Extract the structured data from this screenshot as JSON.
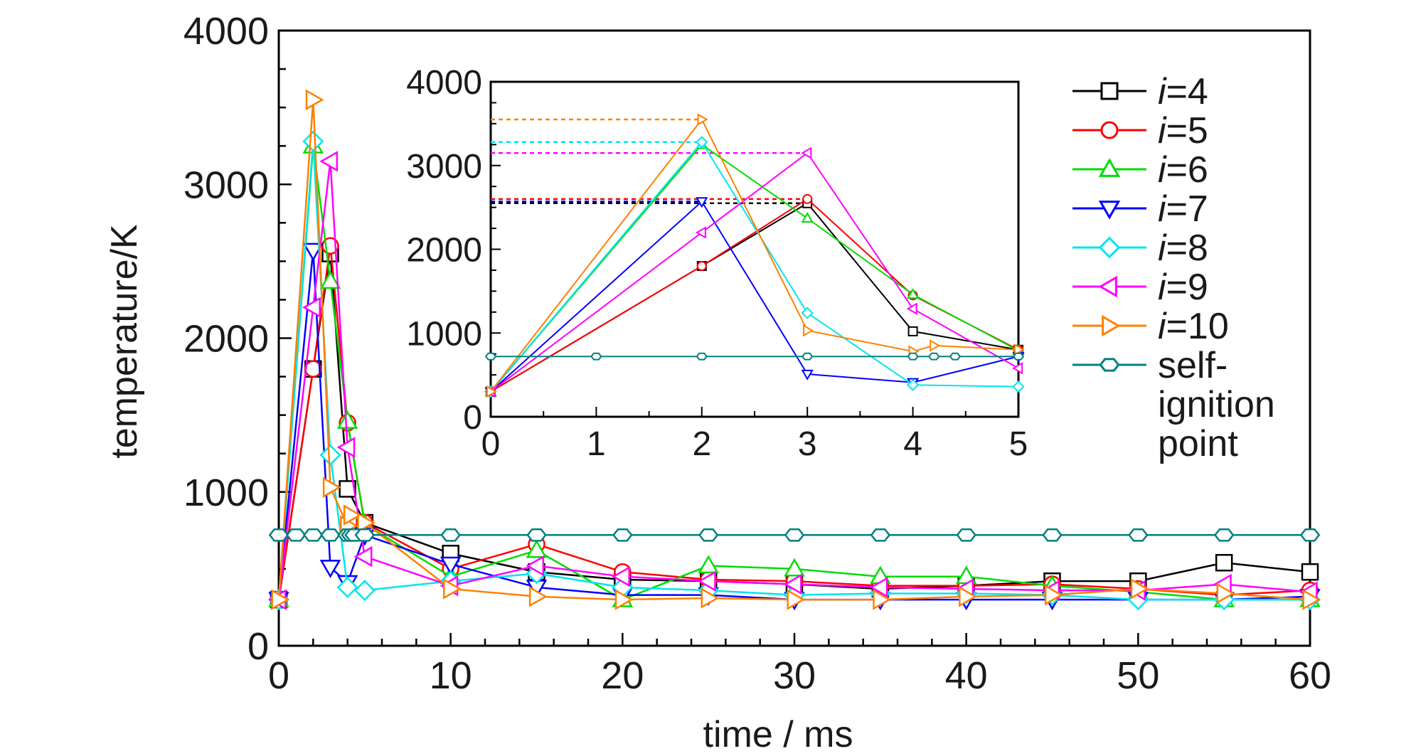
{
  "chart_data": {
    "type": "line",
    "xlabel": "time / ms",
    "ylabel": "temperature/K",
    "xlim": [
      0,
      60
    ],
    "ylim": [
      0,
      4000
    ],
    "xticks": [
      "0",
      "10",
      "20",
      "30",
      "40",
      "50",
      "60"
    ],
    "yticks": [
      "0",
      "1000",
      "2000",
      "3000",
      "4000"
    ],
    "grid": false,
    "legend_position": "right",
    "series": [
      {
        "name": "i=4",
        "label_prefix": "i",
        "label_suffix": "=4",
        "color": "#000000",
        "marker": "square",
        "points": [
          [
            0,
            300
          ],
          [
            2,
            1800
          ],
          [
            3,
            2550
          ],
          [
            4,
            1020
          ],
          [
            5,
            800
          ],
          [
            10,
            600
          ],
          [
            15,
            480
          ],
          [
            20,
            430
          ],
          [
            25,
            420
          ],
          [
            30,
            400
          ],
          [
            35,
            370
          ],
          [
            40,
            390
          ],
          [
            45,
            420
          ],
          [
            50,
            420
          ],
          [
            55,
            540
          ],
          [
            60,
            480
          ]
        ]
      },
      {
        "name": "i=5",
        "label_prefix": "i",
        "label_suffix": "=5",
        "color": "#ff0000",
        "marker": "circle",
        "points": [
          [
            0,
            300
          ],
          [
            2,
            1800
          ],
          [
            3,
            2600
          ],
          [
            4,
            1450
          ],
          [
            5,
            800
          ],
          [
            10,
            500
          ],
          [
            15,
            660
          ],
          [
            20,
            480
          ],
          [
            25,
            430
          ],
          [
            30,
            420
          ],
          [
            35,
            390
          ],
          [
            40,
            390
          ],
          [
            45,
            400
          ],
          [
            50,
            370
          ],
          [
            55,
            330
          ],
          [
            60,
            360
          ]
        ]
      },
      {
        "name": "i=6",
        "label_prefix": "i",
        "label_suffix": "=6",
        "color": "#00dd00",
        "marker": "triangle-up",
        "points": [
          [
            0,
            300
          ],
          [
            2,
            3250
          ],
          [
            3,
            2370
          ],
          [
            4,
            1460
          ],
          [
            5,
            790
          ],
          [
            10,
            450
          ],
          [
            15,
            620
          ],
          [
            20,
            300
          ],
          [
            25,
            520
          ],
          [
            30,
            500
          ],
          [
            35,
            450
          ],
          [
            40,
            450
          ],
          [
            45,
            390
          ],
          [
            50,
            350
          ],
          [
            55,
            300
          ],
          [
            60,
            300
          ]
        ]
      },
      {
        "name": "i=7",
        "label_prefix": "i",
        "label_suffix": "=7",
        "color": "#0000ff",
        "marker": "triangle-down",
        "points": [
          [
            0,
            300
          ],
          [
            2,
            2570
          ],
          [
            3,
            510
          ],
          [
            4,
            410
          ],
          [
            5,
            720
          ],
          [
            10,
            530
          ],
          [
            15,
            380
          ],
          [
            20,
            330
          ],
          [
            25,
            330
          ],
          [
            30,
            300
          ],
          [
            35,
            300
          ],
          [
            40,
            300
          ],
          [
            45,
            300
          ],
          [
            50,
            300
          ],
          [
            55,
            300
          ],
          [
            60,
            320
          ]
        ]
      },
      {
        "name": "i=8",
        "label_prefix": "i",
        "label_suffix": "=8",
        "color": "#00e5ee",
        "marker": "diamond",
        "points": [
          [
            0,
            300
          ],
          [
            2,
            3280
          ],
          [
            3,
            1240
          ],
          [
            4,
            380
          ],
          [
            5,
            360
          ],
          [
            10,
            420
          ],
          [
            15,
            470
          ],
          [
            20,
            380
          ],
          [
            25,
            360
          ],
          [
            30,
            330
          ],
          [
            35,
            340
          ],
          [
            40,
            340
          ],
          [
            45,
            330
          ],
          [
            50,
            300
          ],
          [
            55,
            300
          ],
          [
            60,
            300
          ]
        ]
      },
      {
        "name": "i=9",
        "label_prefix": "i",
        "label_suffix": "=9",
        "color": "#ff00ff",
        "marker": "triangle-left",
        "points": [
          [
            0,
            300
          ],
          [
            2,
            2200
          ],
          [
            3,
            3150
          ],
          [
            4,
            1290
          ],
          [
            5,
            580
          ],
          [
            10,
            390
          ],
          [
            15,
            520
          ],
          [
            20,
            450
          ],
          [
            25,
            420
          ],
          [
            30,
            400
          ],
          [
            35,
            380
          ],
          [
            40,
            370
          ],
          [
            45,
            360
          ],
          [
            50,
            360
          ],
          [
            55,
            400
          ],
          [
            60,
            350
          ]
        ]
      },
      {
        "name": "i=10",
        "label_prefix": "i",
        "label_suffix": "=10",
        "color": "#ff8000",
        "marker": "triangle-right",
        "points": [
          [
            0,
            300
          ],
          [
            2,
            3550
          ],
          [
            3,
            1030
          ],
          [
            4,
            780
          ],
          [
            4.2,
            850
          ],
          [
            5,
            800
          ],
          [
            10,
            370
          ],
          [
            15,
            320
          ],
          [
            20,
            300
          ],
          [
            25,
            310
          ],
          [
            30,
            300
          ],
          [
            35,
            300
          ],
          [
            40,
            320
          ],
          [
            45,
            330
          ],
          [
            50,
            370
          ],
          [
            55,
            340
          ],
          [
            60,
            300
          ]
        ]
      },
      {
        "name": "self-ignition point",
        "label_lines": [
          "self-",
          "ignition",
          "point"
        ],
        "color": "#008080",
        "marker": "hexagon",
        "points": [
          [
            0,
            720
          ],
          [
            1,
            720
          ],
          [
            2,
            720
          ],
          [
            3,
            720
          ],
          [
            4,
            720
          ],
          [
            4.2,
            720
          ],
          [
            4.4,
            720
          ],
          [
            5,
            720
          ],
          [
            10,
            720
          ],
          [
            15,
            720
          ],
          [
            20,
            720
          ],
          [
            25,
            720
          ],
          [
            30,
            720
          ],
          [
            35,
            720
          ],
          [
            40,
            720
          ],
          [
            45,
            720
          ],
          [
            50,
            720
          ],
          [
            55,
            720
          ],
          [
            60,
            720
          ]
        ]
      }
    ],
    "inset": {
      "xlim": [
        0,
        5
      ],
      "ylim": [
        0,
        4000
      ],
      "xticks": [
        "0",
        "1",
        "2",
        "3",
        "4",
        "5"
      ],
      "yticks": [
        "0",
        "1000",
        "2000",
        "3000",
        "4000"
      ],
      "peak_lines": [
        {
          "series": "i=10",
          "value": 3550,
          "color": "#ff8000"
        },
        {
          "series": "i=8",
          "value": 3280,
          "color": "#00e5ee"
        },
        {
          "series": "i=9",
          "value": 3150,
          "color": "#ff00ff"
        },
        {
          "series": "i=5",
          "value": 2600,
          "color": "#ff0000"
        },
        {
          "series": "i=7",
          "value": 2570,
          "color": "#0000ff"
        },
        {
          "series": "i=4",
          "value": 2550,
          "color": "#000000"
        }
      ]
    }
  }
}
